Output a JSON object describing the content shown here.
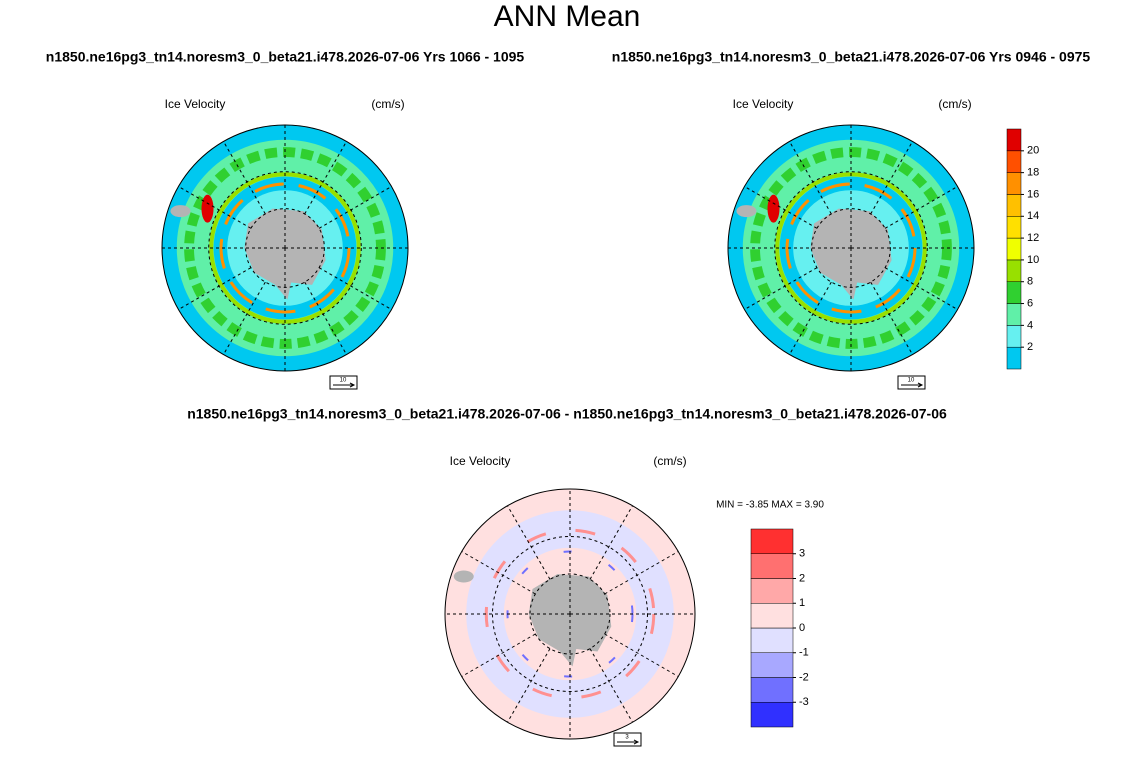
{
  "title": "ANN Mean",
  "panels": [
    {
      "case": "n1850.ne16pg3_tn14.noresm3_0_beta21.i478.2026-07-06  Yrs 1066 - 1095",
      "field": "Ice Velocity",
      "units": "(cm/s)",
      "vector_ref": "10"
    },
    {
      "case": "n1850.ne16pg3_tn14.noresm3_0_beta21.i478.2026-07-06  Yrs 0946 - 0975",
      "field": "Ice Velocity",
      "units": "(cm/s)",
      "vector_ref": "10"
    }
  ],
  "colorbar": {
    "ticks": [
      2,
      4,
      6,
      8,
      10,
      12,
      14,
      16,
      18,
      20
    ],
    "colors": [
      "#00c8f0",
      "#66f0f0",
      "#60f0a8",
      "#30d030",
      "#98e000",
      "#f0ff00",
      "#ffe000",
      "#ffc000",
      "#ff9000",
      "#ff5000",
      "#e00000"
    ]
  },
  "difference": {
    "case": "n1850.ne16pg3_tn14.noresm3_0_beta21.i478.2026-07-06 - n1850.ne16pg3_tn14.noresm3_0_beta21.i478.2026-07-06",
    "field": "Ice Velocity",
    "units": "(cm/s)",
    "vector_ref": "3",
    "stats": "MIN =  -3.85 MAX =   3.90",
    "colorbar": {
      "ticks": [
        -3,
        -2,
        -1,
        0,
        1,
        2,
        3
      ],
      "colors": [
        "#3030ff",
        "#7070ff",
        "#a8a8ff",
        "#e0e0ff",
        "#ffe0e0",
        "#ffa8a8",
        "#ff7070",
        "#ff3030"
      ]
    }
  }
}
